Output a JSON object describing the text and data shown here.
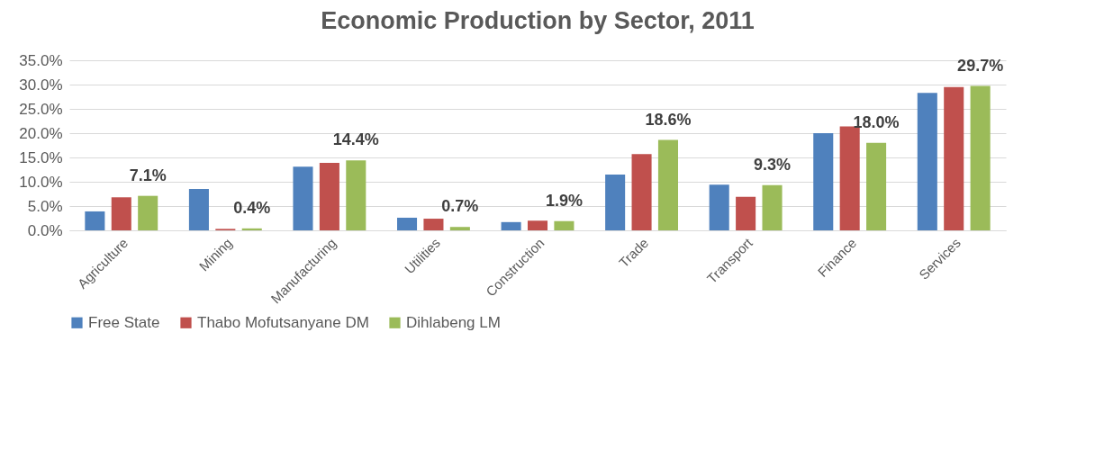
{
  "chart_data": {
    "type": "bar",
    "title": "Economic Production by Sector, 2011",
    "categories": [
      "Agriculture",
      "Mining",
      "Manufacturing",
      "Utilities",
      "Construction",
      "Trade",
      "Transport",
      "Finance",
      "Services"
    ],
    "series": [
      {
        "name": "Free State",
        "color": "#4f81bd",
        "values": [
          3.9,
          8.5,
          13.1,
          2.6,
          1.7,
          11.5,
          9.4,
          20.0,
          28.3
        ]
      },
      {
        "name": "Thabo Mofutsanyane DM",
        "color": "#c0504d",
        "values": [
          6.8,
          0.3,
          13.9,
          2.4,
          2.0,
          15.7,
          6.9,
          21.4,
          29.5
        ]
      },
      {
        "name": "Dihlabeng LM",
        "color": "#9bbb59",
        "values": [
          7.1,
          0.4,
          14.4,
          0.7,
          1.9,
          18.6,
          9.3,
          18.0,
          29.7
        ],
        "value_labels": [
          "7.1%",
          "0.4%",
          "14.4%",
          "0.7%",
          "1.9%",
          "18.6%",
          "9.3%",
          "18.0%",
          "29.7%"
        ]
      }
    ],
    "ylim": [
      0,
      35
    ],
    "yticks": [
      {
        "value": 0,
        "label": "0.0%"
      },
      {
        "value": 5,
        "label": "5.0%"
      },
      {
        "value": 10,
        "label": "10.0%"
      },
      {
        "value": 15,
        "label": "15.0%"
      },
      {
        "value": 20,
        "label": "20.0%"
      },
      {
        "value": 25,
        "label": "25.0%"
      },
      {
        "value": 30,
        "label": "30.0%"
      },
      {
        "value": 35,
        "label": "35.0%"
      }
    ],
    "grid": "y",
    "legend": "bottom"
  }
}
